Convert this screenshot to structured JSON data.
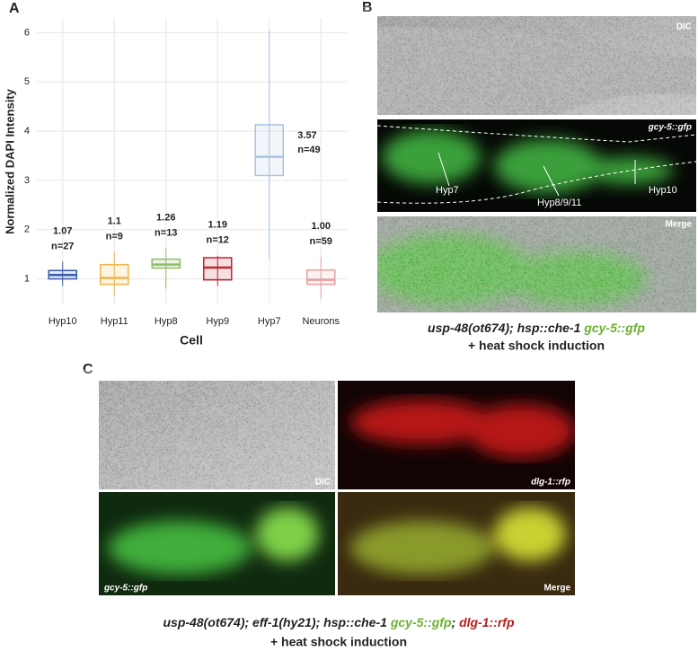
{
  "panel_labels": [
    "A",
    "B",
    "C"
  ],
  "chart_data": {
    "type": "box",
    "ylabel": "Normalized DAPI Intensity",
    "xlabel": "Cell",
    "categories": [
      "Hyp10",
      "Hyp11",
      "Hyp8",
      "Hyp9",
      "Hyp7",
      "Neurons"
    ],
    "series": [
      {
        "name": "Hyp10",
        "color": "#3a5ca8",
        "min": 0.85,
        "q1": 1.0,
        "median": 1.08,
        "q3": 1.17,
        "max": 1.35,
        "mean_label": "1.07",
        "n_label": "n=27"
      },
      {
        "name": "Hyp11",
        "color": "#f0b44a",
        "min": 0.65,
        "q1": 0.89,
        "median": 1.02,
        "q3": 1.29,
        "max": 1.55,
        "mean_label": "1.1",
        "n_label": "n=9"
      },
      {
        "name": "Hyp8",
        "color": "#8bbf62",
        "min": 0.8,
        "q1": 1.22,
        "median": 1.29,
        "q3": 1.4,
        "max": 1.62,
        "mean_label": "1.26",
        "n_label": "n=13"
      },
      {
        "name": "Hyp9",
        "color": "#c0262c",
        "min": 0.85,
        "q1": 0.98,
        "median": 1.23,
        "q3": 1.43,
        "max": 1.47,
        "mean_label": "1.19",
        "n_label": "n=12"
      },
      {
        "name": "Hyp7",
        "color": "#a8c3e4",
        "min": 1.4,
        "q1": 3.1,
        "median": 3.48,
        "q3": 4.13,
        "max": 6.05,
        "mean_label": "3.57",
        "n_label": "n=49"
      },
      {
        "name": "Neurons",
        "color": "#e7a0a0",
        "min": 0.6,
        "q1": 0.89,
        "median": 0.98,
        "q3": 1.18,
        "max": 1.45,
        "mean_label": "1.00",
        "n_label": "n=59"
      }
    ],
    "ylim": [
      0.5,
      6.3
    ],
    "yticks": [
      1,
      2,
      3,
      4,
      5,
      6
    ],
    "grid": true
  },
  "panel_b": {
    "image_labels": [
      "DIC",
      "gcy-5::gfp",
      "Merge"
    ],
    "cell_labels": [
      "Hyp7",
      "Hyp8/9/11",
      "Hyp10"
    ],
    "caption": [
      "usp-48(ot674); hsp::che-1 ",
      "gcy-5::gfp",
      "+ heat shock induction"
    ]
  },
  "panel_c": {
    "image_labels": [
      "DIC",
      "dlg-1::rfp",
      "gcy-5::gfp",
      "Merge"
    ],
    "caption": [
      "usp-48(ot674); eff-1(hy21); hsp::che-1 ",
      "gcy-5::gfp",
      "; ",
      "dlg-1::rfp",
      "+ heat shock induction"
    ]
  }
}
